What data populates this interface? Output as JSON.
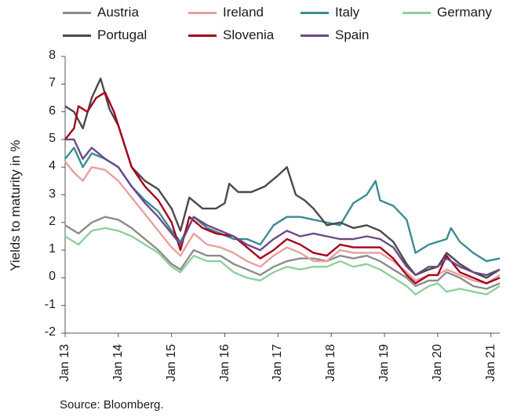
{
  "chart_data": {
    "type": "line",
    "title": "",
    "xlabel": "",
    "ylabel": "Yields to maturity in %",
    "ylim": [
      -2,
      8
    ],
    "yticks": [
      "8",
      "7",
      "6",
      "5",
      "4",
      "3",
      "2",
      "1",
      "0",
      "-1",
      "-2"
    ],
    "xlim": [
      "2013-01",
      "2021-03"
    ],
    "xticks": [
      "Jan 13",
      "Jan 14",
      "Jan 15",
      "Jan 16",
      "Jan 17",
      "Jan 18",
      "Jan 19",
      "Jan 20",
      "Jan 21"
    ],
    "legend_position": "top",
    "source": "Source: Bloomberg.",
    "series": [
      {
        "name": "Austria",
        "color": "#8c8c8c",
        "points": [
          [
            "2013-01",
            1.9
          ],
          [
            "2013-04",
            1.6
          ],
          [
            "2013-07",
            2.0
          ],
          [
            "2013-10",
            2.2
          ],
          [
            "2014-01",
            2.1
          ],
          [
            "2014-04",
            1.8
          ],
          [
            "2014-07",
            1.4
          ],
          [
            "2014-10",
            1.0
          ],
          [
            "2015-01",
            0.5
          ],
          [
            "2015-03",
            0.3
          ],
          [
            "2015-06",
            1.0
          ],
          [
            "2015-09",
            0.8
          ],
          [
            "2015-12",
            0.8
          ],
          [
            "2016-03",
            0.5
          ],
          [
            "2016-06",
            0.3
          ],
          [
            "2016-09",
            0.1
          ],
          [
            "2016-12",
            0.4
          ],
          [
            "2017-03",
            0.6
          ],
          [
            "2017-06",
            0.7
          ],
          [
            "2017-09",
            0.7
          ],
          [
            "2017-12",
            0.6
          ],
          [
            "2018-03",
            0.8
          ],
          [
            "2018-06",
            0.7
          ],
          [
            "2018-09",
            0.8
          ],
          [
            "2018-12",
            0.6
          ],
          [
            "2019-03",
            0.3
          ],
          [
            "2019-06",
            0.0
          ],
          [
            "2019-08",
            -0.3
          ],
          [
            "2019-11",
            -0.1
          ],
          [
            "2020-01",
            -0.1
          ],
          [
            "2020-03",
            0.2
          ],
          [
            "2020-06",
            0.0
          ],
          [
            "2020-09",
            -0.3
          ],
          [
            "2020-12",
            -0.4
          ],
          [
            "2021-03",
            -0.2
          ]
        ]
      },
      {
        "name": "Ireland",
        "color": "#e8a0a0",
        "points": [
          [
            "2013-01",
            4.2
          ],
          [
            "2013-03",
            3.8
          ],
          [
            "2013-05",
            3.5
          ],
          [
            "2013-07",
            4.0
          ],
          [
            "2013-10",
            3.9
          ],
          [
            "2014-01",
            3.5
          ],
          [
            "2014-04",
            2.9
          ],
          [
            "2014-07",
            2.3
          ],
          [
            "2014-10",
            1.7
          ],
          [
            "2015-01",
            1.1
          ],
          [
            "2015-03",
            0.8
          ],
          [
            "2015-06",
            1.6
          ],
          [
            "2015-09",
            1.2
          ],
          [
            "2015-12",
            1.1
          ],
          [
            "2016-03",
            0.9
          ],
          [
            "2016-06",
            0.6
          ],
          [
            "2016-09",
            0.4
          ],
          [
            "2016-12",
            0.8
          ],
          [
            "2017-03",
            1.1
          ],
          [
            "2017-06",
            0.9
          ],
          [
            "2017-09",
            0.6
          ],
          [
            "2017-12",
            0.6
          ],
          [
            "2018-03",
            1.0
          ],
          [
            "2018-06",
            0.9
          ],
          [
            "2018-09",
            0.9
          ],
          [
            "2018-12",
            0.9
          ],
          [
            "2019-03",
            0.6
          ],
          [
            "2019-06",
            0.2
          ],
          [
            "2019-08",
            -0.1
          ],
          [
            "2019-11",
            0.1
          ],
          [
            "2020-01",
            0.1
          ],
          [
            "2020-03",
            0.3
          ],
          [
            "2020-06",
            0.1
          ],
          [
            "2020-09",
            -0.1
          ],
          [
            "2020-12",
            -0.2
          ],
          [
            "2021-03",
            0.1
          ]
        ]
      },
      {
        "name": "Italy",
        "color": "#3b8c92",
        "points": [
          [
            "2013-01",
            4.3
          ],
          [
            "2013-03",
            4.7
          ],
          [
            "2013-05",
            4.0
          ],
          [
            "2013-07",
            4.5
          ],
          [
            "2013-10",
            4.3
          ],
          [
            "2014-01",
            4.0
          ],
          [
            "2014-04",
            3.3
          ],
          [
            "2014-07",
            2.8
          ],
          [
            "2014-10",
            2.4
          ],
          [
            "2015-01",
            1.7
          ],
          [
            "2015-03",
            1.3
          ],
          [
            "2015-06",
            2.2
          ],
          [
            "2015-09",
            1.8
          ],
          [
            "2015-12",
            1.6
          ],
          [
            "2016-03",
            1.4
          ],
          [
            "2016-06",
            1.4
          ],
          [
            "2016-09",
            1.2
          ],
          [
            "2016-12",
            1.9
          ],
          [
            "2017-03",
            2.2
          ],
          [
            "2017-06",
            2.2
          ],
          [
            "2017-09",
            2.1
          ],
          [
            "2017-12",
            2.0
          ],
          [
            "2018-03",
            1.9
          ],
          [
            "2018-06",
            2.7
          ],
          [
            "2018-09",
            3.0
          ],
          [
            "2018-11",
            3.5
          ],
          [
            "2018-12",
            2.8
          ],
          [
            "2019-03",
            2.6
          ],
          [
            "2019-06",
            2.1
          ],
          [
            "2019-08",
            0.9
          ],
          [
            "2019-11",
            1.2
          ],
          [
            "2020-01",
            1.3
          ],
          [
            "2020-03",
            1.4
          ],
          [
            "2020-04",
            1.8
          ],
          [
            "2020-06",
            1.3
          ],
          [
            "2020-09",
            0.9
          ],
          [
            "2020-12",
            0.6
          ],
          [
            "2021-03",
            0.7
          ]
        ]
      },
      {
        "name": "Germany",
        "color": "#8fcf9c",
        "points": [
          [
            "2013-01",
            1.5
          ],
          [
            "2013-04",
            1.2
          ],
          [
            "2013-07",
            1.7
          ],
          [
            "2013-10",
            1.8
          ],
          [
            "2014-01",
            1.7
          ],
          [
            "2014-04",
            1.5
          ],
          [
            "2014-07",
            1.2
          ],
          [
            "2014-10",
            0.9
          ],
          [
            "2015-01",
            0.4
          ],
          [
            "2015-03",
            0.2
          ],
          [
            "2015-06",
            0.8
          ],
          [
            "2015-09",
            0.6
          ],
          [
            "2015-12",
            0.6
          ],
          [
            "2016-03",
            0.2
          ],
          [
            "2016-06",
            0.0
          ],
          [
            "2016-09",
            -0.1
          ],
          [
            "2016-12",
            0.2
          ],
          [
            "2017-03",
            0.4
          ],
          [
            "2017-06",
            0.3
          ],
          [
            "2017-09",
            0.4
          ],
          [
            "2017-12",
            0.4
          ],
          [
            "2018-03",
            0.6
          ],
          [
            "2018-06",
            0.4
          ],
          [
            "2018-09",
            0.5
          ],
          [
            "2018-12",
            0.3
          ],
          [
            "2019-03",
            0.0
          ],
          [
            "2019-06",
            -0.3
          ],
          [
            "2019-08",
            -0.6
          ],
          [
            "2019-11",
            -0.3
          ],
          [
            "2020-01",
            -0.2
          ],
          [
            "2020-03",
            -0.5
          ],
          [
            "2020-06",
            -0.4
          ],
          [
            "2020-09",
            -0.5
          ],
          [
            "2020-12",
            -0.6
          ],
          [
            "2021-03",
            -0.3
          ]
        ]
      },
      {
        "name": "Portugal",
        "color": "#4a4a4a",
        "points": [
          [
            "2013-01",
            6.2
          ],
          [
            "2013-03",
            6.0
          ],
          [
            "2013-05",
            5.4
          ],
          [
            "2013-07",
            6.5
          ],
          [
            "2013-09",
            7.2
          ],
          [
            "2013-11",
            6.1
          ],
          [
            "2014-01",
            5.5
          ],
          [
            "2014-04",
            4.0
          ],
          [
            "2014-07",
            3.5
          ],
          [
            "2014-10",
            3.2
          ],
          [
            "2015-01",
            2.5
          ],
          [
            "2015-03",
            1.7
          ],
          [
            "2015-05",
            2.9
          ],
          [
            "2015-08",
            2.5
          ],
          [
            "2015-11",
            2.5
          ],
          [
            "2016-01",
            2.7
          ],
          [
            "2016-02",
            3.4
          ],
          [
            "2016-04",
            3.1
          ],
          [
            "2016-07",
            3.1
          ],
          [
            "2016-10",
            3.3
          ],
          [
            "2017-01",
            3.7
          ],
          [
            "2017-03",
            4.0
          ],
          [
            "2017-05",
            3.0
          ],
          [
            "2017-07",
            2.8
          ],
          [
            "2017-09",
            2.5
          ],
          [
            "2017-12",
            1.9
          ],
          [
            "2018-03",
            2.0
          ],
          [
            "2018-06",
            1.8
          ],
          [
            "2018-09",
            1.9
          ],
          [
            "2018-12",
            1.7
          ],
          [
            "2019-03",
            1.3
          ],
          [
            "2019-06",
            0.5
          ],
          [
            "2019-08",
            0.1
          ],
          [
            "2019-11",
            0.3
          ],
          [
            "2020-01",
            0.4
          ],
          [
            "2020-03",
            0.9
          ],
          [
            "2020-06",
            0.5
          ],
          [
            "2020-09",
            0.2
          ],
          [
            "2020-12",
            0.0
          ],
          [
            "2021-03",
            0.3
          ]
        ]
      },
      {
        "name": "Slovenia",
        "color": "#a8001e",
        "points": [
          [
            "2013-01",
            5.0
          ],
          [
            "2013-03",
            5.4
          ],
          [
            "2013-04",
            6.2
          ],
          [
            "2013-06",
            6.0
          ],
          [
            "2013-08",
            6.5
          ],
          [
            "2013-10",
            6.7
          ],
          [
            "2013-12",
            6.0
          ],
          [
            "2014-02",
            5.0
          ],
          [
            "2014-04",
            4.0
          ],
          [
            "2014-07",
            3.3
          ],
          [
            "2014-10",
            2.8
          ],
          [
            "2015-01",
            2.0
          ],
          [
            "2015-03",
            1.0
          ],
          [
            "2015-05",
            2.2
          ],
          [
            "2015-08",
            1.8
          ],
          [
            "2015-11",
            1.6
          ],
          [
            "2016-03",
            1.5
          ],
          [
            "2016-06",
            1.1
          ],
          [
            "2016-09",
            0.7
          ],
          [
            "2016-12",
            1.0
          ],
          [
            "2017-03",
            1.4
          ],
          [
            "2017-06",
            1.2
          ],
          [
            "2017-09",
            0.9
          ],
          [
            "2017-12",
            0.8
          ],
          [
            "2018-03",
            1.2
          ],
          [
            "2018-06",
            1.1
          ],
          [
            "2018-09",
            1.1
          ],
          [
            "2018-12",
            1.1
          ],
          [
            "2019-03",
            0.7
          ],
          [
            "2019-06",
            0.1
          ],
          [
            "2019-08",
            -0.2
          ],
          [
            "2019-11",
            0.1
          ],
          [
            "2020-01",
            0.1
          ],
          [
            "2020-03",
            0.8
          ],
          [
            "2020-06",
            0.2
          ],
          [
            "2020-09",
            0.0
          ],
          [
            "2020-12",
            -0.2
          ],
          [
            "2021-03",
            0.0
          ]
        ]
      },
      {
        "name": "Spain",
        "color": "#6b4a87",
        "points": [
          [
            "2013-01",
            5.0
          ],
          [
            "2013-03",
            5.0
          ],
          [
            "2013-05",
            4.3
          ],
          [
            "2013-07",
            4.7
          ],
          [
            "2013-10",
            4.3
          ],
          [
            "2014-01",
            4.0
          ],
          [
            "2014-04",
            3.3
          ],
          [
            "2014-07",
            2.7
          ],
          [
            "2014-10",
            2.2
          ],
          [
            "2015-01",
            1.6
          ],
          [
            "2015-03",
            1.2
          ],
          [
            "2015-06",
            2.2
          ],
          [
            "2015-09",
            1.9
          ],
          [
            "2015-12",
            1.7
          ],
          [
            "2016-03",
            1.5
          ],
          [
            "2016-06",
            1.2
          ],
          [
            "2016-09",
            1.0
          ],
          [
            "2016-12",
            1.4
          ],
          [
            "2017-03",
            1.7
          ],
          [
            "2017-06",
            1.5
          ],
          [
            "2017-09",
            1.6
          ],
          [
            "2017-12",
            1.5
          ],
          [
            "2018-03",
            1.4
          ],
          [
            "2018-06",
            1.4
          ],
          [
            "2018-09",
            1.5
          ],
          [
            "2018-12",
            1.4
          ],
          [
            "2019-03",
            1.1
          ],
          [
            "2019-06",
            0.4
          ],
          [
            "2019-08",
            0.1
          ],
          [
            "2019-11",
            0.4
          ],
          [
            "2020-01",
            0.4
          ],
          [
            "2020-03",
            0.7
          ],
          [
            "2020-06",
            0.4
          ],
          [
            "2020-09",
            0.2
          ],
          [
            "2020-12",
            0.1
          ],
          [
            "2021-03",
            0.3
          ]
        ]
      }
    ]
  }
}
